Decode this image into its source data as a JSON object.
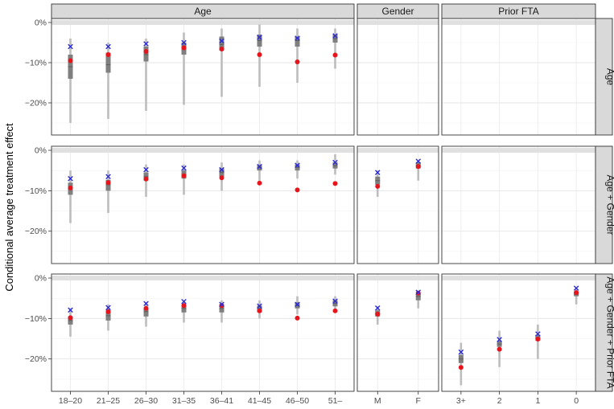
{
  "chart_data": {
    "type": "faceted-interval-plot",
    "ylabel": "Conditional average treatment effect",
    "ylim": [
      -28,
      1
    ],
    "yticks": [
      0,
      -10,
      -20
    ],
    "ytick_labels": [
      "0%",
      "−10%",
      "−20%"
    ],
    "column_facets": [
      {
        "key": "age",
        "label": "Age",
        "categories": [
          "18–20",
          "21–25",
          "26–30",
          "31–35",
          "36–41",
          "41–45",
          "46–50",
          "51–"
        ]
      },
      {
        "key": "gender",
        "label": "Gender",
        "categories": [
          "M",
          "F"
        ]
      },
      {
        "key": "fta",
        "label": "Prior FTA",
        "categories": [
          "3+",
          "2",
          "1",
          "0"
        ]
      }
    ],
    "row_facets": [
      {
        "key": "age",
        "label": "Age"
      },
      {
        "key": "age_gender",
        "label": "Age + Gender"
      },
      {
        "key": "age_gender_fta",
        "label": "Age + Gender + Prior FTA"
      }
    ],
    "colors": {
      "thin_interval": "#bdbdbd",
      "thick_interval": "#7f7f7f",
      "point_dot": "#e8141b",
      "point_cross": "#2b2bd4",
      "zero_band": "#e0e0e0",
      "strip_fill": "#d9d9d9"
    },
    "panels": [
      {
        "row": "age",
        "col": "age",
        "points": [
          {
            "cat": "18–20",
            "lo": -25,
            "q1": -14,
            "med": -11,
            "q3": -8,
            "hi": -4,
            "dot": -9.5,
            "cross": -6
          },
          {
            "cat": "21–25",
            "lo": -24,
            "q1": -12.5,
            "med": -10.5,
            "q3": -7.5,
            "hi": -5,
            "dot": -8,
            "cross": -6
          },
          {
            "cat": "26–30",
            "lo": -22,
            "q1": -9.7,
            "med": -8,
            "q3": -6,
            "hi": -4,
            "dot": -7.2,
            "cross": -5.3
          },
          {
            "cat": "31–35",
            "lo": -20.5,
            "q1": -8,
            "med": -6.5,
            "q3": -5,
            "hi": -2.5,
            "dot": -6.3,
            "cross": -5
          },
          {
            "cat": "36–41",
            "lo": -18.5,
            "q1": -7,
            "med": -5.5,
            "q3": -3.5,
            "hi": -1.5,
            "dot": -6.6,
            "cross": -4.6
          },
          {
            "cat": "41–45",
            "lo": -16,
            "q1": -6,
            "med": -4.5,
            "q3": -3,
            "hi": -0.5,
            "dot": -8,
            "cross": -3.7
          },
          {
            "cat": "46–50",
            "lo": -15,
            "q1": -6,
            "med": -4.5,
            "q3": -3.5,
            "hi": -1.5,
            "dot": -9.8,
            "cross": -3.9
          },
          {
            "cat": "51–",
            "lo": -11.5,
            "q1": -5,
            "med": -4,
            "q3": -3,
            "hi": -1.5,
            "dot": -8.1,
            "cross": -3.3
          }
        ]
      },
      {
        "row": "age_gender",
        "col": "age",
        "points": [
          {
            "cat": "18–20",
            "lo": -18,
            "q1": -11,
            "med": -9.5,
            "q3": -8,
            "hi": -5,
            "dot": -9.3,
            "cross": -7
          },
          {
            "cat": "21–25",
            "lo": -15.5,
            "q1": -10,
            "med": -8.5,
            "q3": -7.3,
            "hi": -5,
            "dot": -8,
            "cross": -6.5
          },
          {
            "cat": "26–30",
            "lo": -11.5,
            "q1": -7.5,
            "med": -6.5,
            "q3": -5.5,
            "hi": -3.5,
            "dot": -7.1,
            "cross": -4.8
          },
          {
            "cat": "31–35",
            "lo": -11,
            "q1": -7,
            "med": -6,
            "q3": -5,
            "hi": -3.5,
            "dot": -6.3,
            "cross": -4.4
          },
          {
            "cat": "36–41",
            "lo": -10,
            "q1": -6.5,
            "med": -5.5,
            "q3": -4.5,
            "hi": -3,
            "dot": -6.8,
            "cross": -4.8
          },
          {
            "cat": "41–45",
            "lo": -7.5,
            "q1": -5,
            "med": -4.3,
            "q3": -3.7,
            "hi": -2.5,
            "dot": -8.1,
            "cross": -4
          },
          {
            "cat": "46–50",
            "lo": -7,
            "q1": -5,
            "med": -4.2,
            "q3": -3.5,
            "hi": -2.5,
            "dot": -9.8,
            "cross": -3.7
          },
          {
            "cat": "51–",
            "lo": -6,
            "q1": -4.5,
            "med": -3.8,
            "q3": -3,
            "hi": -1,
            "dot": -8.2,
            "cross": -3
          }
        ]
      },
      {
        "row": "age_gender",
        "col": "gender",
        "points": [
          {
            "cat": "M",
            "lo": -11.5,
            "q1": -8.5,
            "med": -7.5,
            "q3": -6.5,
            "hi": -5,
            "dot": -8.9,
            "cross": -5.5
          },
          {
            "cat": "F",
            "lo": -7.5,
            "q1": -4.5,
            "med": -3.8,
            "q3": -3,
            "hi": -2.5,
            "dot": -4,
            "cross": -2.7
          }
        ]
      },
      {
        "row": "age_gender_fta",
        "col": "age",
        "points": [
          {
            "cat": "18–20",
            "lo": -14.5,
            "q1": -11.5,
            "med": -10.5,
            "q3": -9.5,
            "hi": -7.5,
            "dot": -9.8,
            "cross": -7.9
          },
          {
            "cat": "21–25",
            "lo": -13,
            "q1": -10.5,
            "med": -9.3,
            "q3": -8,
            "hi": -6.5,
            "dot": -8.3,
            "cross": -7.3
          },
          {
            "cat": "26–30",
            "lo": -12,
            "q1": -9.5,
            "med": -8.3,
            "q3": -7.3,
            "hi": -6,
            "dot": -7.5,
            "cross": -6.3
          },
          {
            "cat": "31–35",
            "lo": -11,
            "q1": -8.5,
            "med": -7.5,
            "q3": -6.5,
            "hi": -5.5,
            "dot": -6.8,
            "cross": -5.8
          },
          {
            "cat": "36–41",
            "lo": -11,
            "q1": -8.5,
            "med": -7.5,
            "q3": -6.5,
            "hi": -5.5,
            "dot": -6.8,
            "cross": -6.5
          },
          {
            "cat": "41–45",
            "lo": -10,
            "q1": -8.5,
            "med": -7.5,
            "q3": -6.8,
            "hi": -5.5,
            "dot": -8.1,
            "cross": -6.9
          },
          {
            "cat": "46–50",
            "lo": -9,
            "q1": -7.5,
            "med": -6.8,
            "q3": -6,
            "hi": -4.5,
            "dot": -9.9,
            "cross": -6.5
          },
          {
            "cat": "51–",
            "lo": -8,
            "q1": -7,
            "med": -6.3,
            "q3": -5.5,
            "hi": -4.5,
            "dot": -8.1,
            "cross": -5.7
          }
        ]
      },
      {
        "row": "age_gender_fta",
        "col": "gender",
        "points": [
          {
            "cat": "M",
            "lo": -11.5,
            "q1": -9.5,
            "med": -8.8,
            "q3": -8,
            "hi": -7,
            "dot": -8.9,
            "cross": -7.4
          },
          {
            "cat": "F",
            "lo": -7.5,
            "q1": -5.5,
            "med": -4.5,
            "q3": -4,
            "hi": -3.5,
            "dot": -3.7,
            "cross": -3.5
          }
        ]
      },
      {
        "row": "age_gender_fta",
        "col": "fta",
        "points": [
          {
            "cat": "3+",
            "lo": -26.5,
            "q1": -21,
            "med": -20,
            "q3": -19,
            "hi": -16,
            "dot": -22.1,
            "cross": -18.3
          },
          {
            "cat": "2",
            "lo": -22,
            "q1": -17,
            "med": -16.3,
            "q3": -15.5,
            "hi": -13,
            "dot": -17.6,
            "cross": -15.2
          },
          {
            "cat": "1",
            "lo": -20,
            "q1": -15.5,
            "med": -14.8,
            "q3": -14,
            "hi": -11.5,
            "dot": -15.1,
            "cross": -13.8
          },
          {
            "cat": "0",
            "lo": -6.5,
            "q1": -4.5,
            "med": -4,
            "q3": -3.3,
            "hi": -2.5,
            "dot": -3.6,
            "cross": -2.5
          }
        ]
      }
    ]
  }
}
